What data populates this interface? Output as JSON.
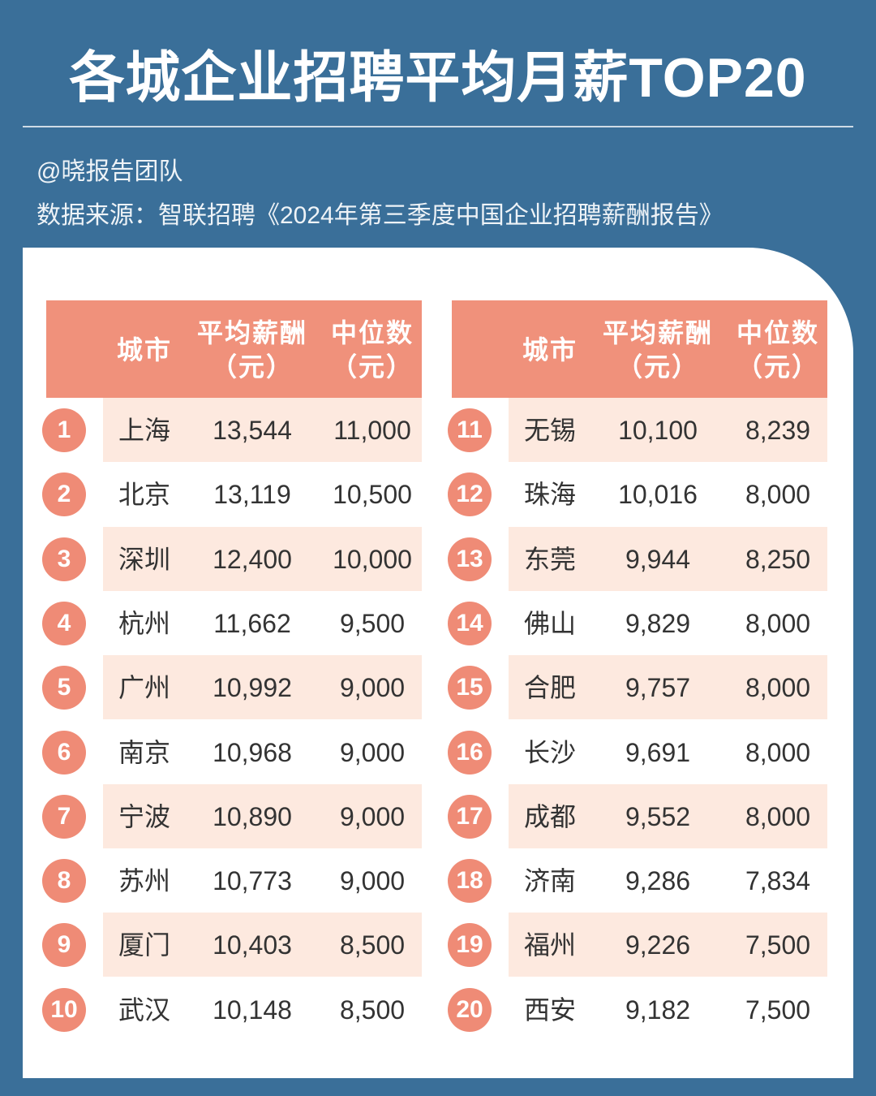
{
  "header": {
    "title": "各城企业招聘平均月薪TOP20",
    "author": "@晓报告团队",
    "source": "数据来源：智联招聘《2024年第三季度中国企业招聘薪酬报告》"
  },
  "tables": [
    {
      "columns": [
        {
          "label": "城市"
        },
        {
          "label": "平均薪酬",
          "unit": "（元）"
        },
        {
          "label": "中位数",
          "unit": "（元）"
        }
      ],
      "rows": [
        [
          "1",
          "上海",
          "13,544",
          "11,000"
        ],
        [
          "2",
          "北京",
          "13,119",
          "10,500"
        ],
        [
          "3",
          "深圳",
          "12,400",
          "10,000"
        ],
        [
          "4",
          "杭州",
          "11,662",
          "9,500"
        ],
        [
          "5",
          "广州",
          "10,992",
          "9,000"
        ],
        [
          "6",
          "南京",
          "10,968",
          "9,000"
        ],
        [
          "7",
          "宁波",
          "10,890",
          "9,000"
        ],
        [
          "8",
          "苏州",
          "10,773",
          "9,000"
        ],
        [
          "9",
          "厦门",
          "10,403",
          "8,500"
        ],
        [
          "10",
          "武汉",
          "10,148",
          "8,500"
        ]
      ]
    },
    {
      "columns": [
        {
          "label": "城市"
        },
        {
          "label": "平均薪酬",
          "unit": "（元）"
        },
        {
          "label": "中位数",
          "unit": "（元）"
        }
      ],
      "rows": [
        [
          "11",
          "无锡",
          "10,100",
          "8,239"
        ],
        [
          "12",
          "珠海",
          "10,016",
          "8,000"
        ],
        [
          "13",
          "东莞",
          "9,944",
          "8,250"
        ],
        [
          "14",
          "佛山",
          "9,829",
          "8,000"
        ],
        [
          "15",
          "合肥",
          "9,757",
          "8,000"
        ],
        [
          "16",
          "长沙",
          "9,691",
          "8,000"
        ],
        [
          "17",
          "成都",
          "9,552",
          "8,000"
        ],
        [
          "18",
          "济南",
          "9,286",
          "7,834"
        ],
        [
          "19",
          "福州",
          "9,226",
          "7,500"
        ],
        [
          "20",
          "西安",
          "9,182",
          "7,500"
        ]
      ]
    }
  ]
}
